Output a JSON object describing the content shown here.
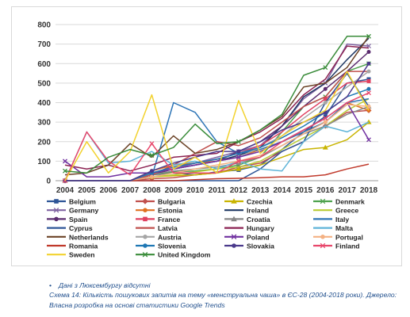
{
  "chart_data": {
    "type": "line",
    "x": [
      "2004",
      "2005",
      "2006",
      "2007",
      "2008",
      "2009",
      "2010",
      "2011",
      "2012",
      "2013",
      "2014",
      "2015",
      "2016",
      "2017",
      "2018"
    ],
    "y_ticks": [
      "0",
      "100",
      "200",
      "300",
      "400",
      "500",
      "600",
      "700",
      "800"
    ],
    "ylim": [
      0,
      800
    ],
    "grid": "horizontal",
    "legend_position": "bottom",
    "series": [
      {
        "name": "Belgium",
        "color": "#2e5597",
        "marker": "square",
        "values": [
          0,
          0,
          0,
          0,
          30,
          40,
          30,
          45,
          55,
          80,
          160,
          250,
          330,
          500,
          520
        ]
      },
      {
        "name": "Bulgaria",
        "color": "#c0504d",
        "marker": "diamond",
        "values": [
          0,
          0,
          0,
          0,
          10,
          15,
          30,
          40,
          70,
          90,
          150,
          200,
          280,
          350,
          360
        ]
      },
      {
        "name": "Czechia",
        "color": "#c8b400",
        "marker": "triangle",
        "values": [
          0,
          0,
          0,
          0,
          20,
          25,
          30,
          40,
          60,
          80,
          120,
          160,
          170,
          210,
          300
        ]
      },
      {
        "name": "Denmark",
        "color": "#4ea24e",
        "marker": "x",
        "values": [
          0,
          0,
          0,
          0,
          30,
          45,
          50,
          60,
          80,
          120,
          250,
          380,
          430,
          560,
          600
        ]
      },
      {
        "name": "Germany",
        "color": "#8064a2",
        "marker": "x",
        "values": [
          0,
          0,
          0,
          0,
          40,
          60,
          90,
          120,
          150,
          180,
          280,
          420,
          500,
          700,
          690
        ]
      },
      {
        "name": "Estonia",
        "color": "#e07020",
        "marker": "circle",
        "values": [
          0,
          0,
          0,
          0,
          50,
          80,
          90,
          100,
          120,
          160,
          200,
          250,
          300,
          400,
          360
        ]
      },
      {
        "name": "Ireland",
        "color": "#1f3864",
        "marker": "line",
        "values": [
          0,
          0,
          0,
          0,
          40,
          60,
          80,
          100,
          130,
          170,
          280,
          430,
          500,
          620,
          730
        ]
      },
      {
        "name": "Greece",
        "color": "#b8cc33",
        "marker": "line",
        "values": [
          0,
          0,
          0,
          0,
          20,
          30,
          45,
          60,
          70,
          100,
          160,
          220,
          280,
          360,
          420
        ]
      },
      {
        "name": "Spain",
        "color": "#5b2c6f",
        "marker": "circle",
        "values": [
          0,
          0,
          0,
          0,
          30,
          60,
          80,
          100,
          150,
          200,
          280,
          380,
          470,
          560,
          660
        ]
      },
      {
        "name": "France",
        "color": "#e04060",
        "marker": "square",
        "values": [
          0,
          0,
          0,
          0,
          40,
          70,
          90,
          110,
          140,
          180,
          250,
          340,
          420,
          500,
          510
        ]
      },
      {
        "name": "Croatia",
        "color": "#888888",
        "marker": "triangle",
        "values": [
          0,
          0,
          0,
          0,
          30,
          50,
          60,
          70,
          90,
          120,
          180,
          240,
          280,
          340,
          380
        ]
      },
      {
        "name": "Italy",
        "color": "#2e75b6",
        "marker": "line",
        "values": [
          0,
          0,
          0,
          0,
          20,
          400,
          350,
          200,
          140,
          160,
          200,
          250,
          300,
          400,
          420
        ]
      },
      {
        "name": "Cyprus",
        "color": "#2e5597",
        "marker": "line",
        "values": [
          0,
          0,
          0,
          0,
          0,
          0,
          0,
          0,
          0,
          60,
          150,
          200,
          400,
          550,
          380
        ]
      },
      {
        "name": "Latvia",
        "color": "#c0504d",
        "marker": "line",
        "values": [
          0,
          0,
          0,
          0,
          30,
          80,
          140,
          200,
          180,
          220,
          300,
          380,
          430,
          560,
          560
        ]
      },
      {
        "name": "Hungary",
        "color": "#8b2252",
        "marker": "line",
        "values": [
          80,
          60,
          80,
          50,
          80,
          120,
          130,
          140,
          200,
          250,
          320,
          440,
          520,
          690,
          680
        ]
      },
      {
        "name": "Malta",
        "color": "#5fb4d8",
        "marker": "line",
        "values": [
          0,
          250,
          90,
          100,
          150,
          80,
          100,
          60,
          100,
          60,
          50,
          200,
          280,
          250,
          300
        ]
      },
      {
        "name": "Netherlands",
        "color": "#6b4226",
        "marker": "line",
        "values": [
          30,
          40,
          80,
          190,
          120,
          230,
          140,
          160,
          200,
          260,
          330,
          480,
          500,
          580,
          740
        ]
      },
      {
        "name": "Austria",
        "color": "#a6a6a6",
        "marker": "circle",
        "values": [
          0,
          0,
          0,
          0,
          40,
          60,
          80,
          100,
          120,
          170,
          230,
          320,
          400,
          480,
          560
        ]
      },
      {
        "name": "Poland",
        "color": "#7030a0",
        "marker": "x",
        "values": [
          100,
          20,
          20,
          40,
          40,
          60,
          80,
          100,
          120,
          150,
          200,
          260,
          320,
          400,
          210
        ]
      },
      {
        "name": "Portugal",
        "color": "#f4b183",
        "marker": "circle",
        "values": [
          0,
          0,
          0,
          0,
          20,
          40,
          60,
          80,
          100,
          130,
          180,
          240,
          300,
          390,
          380
        ]
      },
      {
        "name": "Romania",
        "color": "#c0392b",
        "marker": "line",
        "values": [
          0,
          0,
          0,
          0,
          0,
          0,
          5,
          10,
          12,
          15,
          20,
          20,
          30,
          60,
          85
        ]
      },
      {
        "name": "Slovenia",
        "color": "#1f77b4",
        "marker": "circle",
        "values": [
          0,
          0,
          0,
          0,
          40,
          70,
          90,
          110,
          140,
          170,
          220,
          280,
          350,
          430,
          470
        ]
      },
      {
        "name": "Slovakia",
        "color": "#4b3a8c",
        "marker": "circle",
        "values": [
          0,
          0,
          0,
          0,
          50,
          90,
          120,
          150,
          150,
          200,
          260,
          300,
          350,
          430,
          600
        ]
      },
      {
        "name": "Finland",
        "color": "#e8486c",
        "marker": "x",
        "values": [
          0,
          250,
          100,
          30,
          190,
          40,
          40,
          40,
          100,
          120,
          200,
          260,
          320,
          400,
          450
        ]
      },
      {
        "name": "Sweden",
        "color": "#f2d22e",
        "marker": "line",
        "values": [
          0,
          200,
          40,
          150,
          440,
          60,
          120,
          40,
          410,
          140,
          230,
          300,
          360,
          560,
          360
        ]
      },
      {
        "name": "United Kingdom",
        "color": "#3a8c3a",
        "marker": "x",
        "values": [
          50,
          40,
          120,
          160,
          130,
          170,
          290,
          190,
          200,
          260,
          340,
          540,
          580,
          740,
          740
        ]
      }
    ]
  },
  "caption": {
    "note": "Дані з Люксембургу відсутні",
    "text": "Схема 14: Кількість пошукових запитів на тему «менструальна чаша» в ЄС-28 (2004-2018 роки). Джерело: Власна розробка на основі статистики Google Trends"
  }
}
